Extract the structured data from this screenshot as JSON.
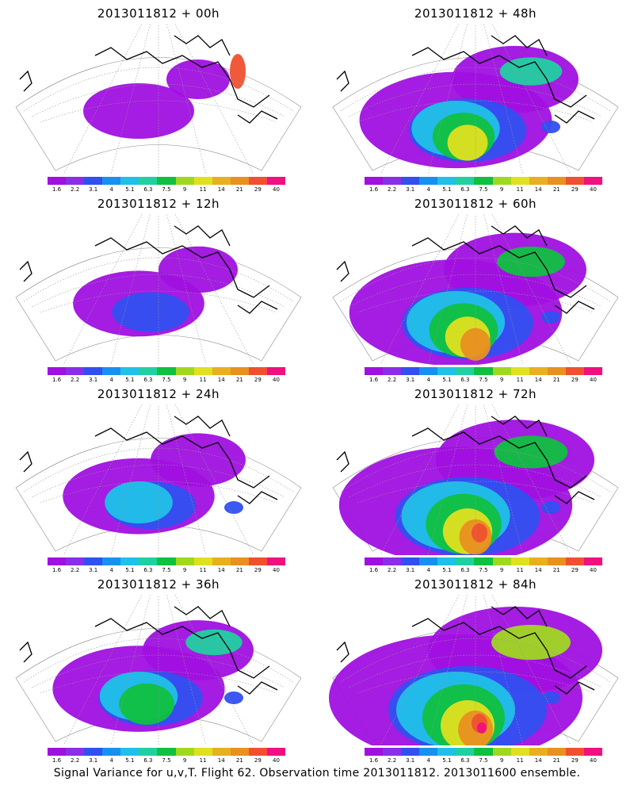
{
  "panels": [
    {
      "title": "2013011812 + 00h",
      "fcst_hour": 0
    },
    {
      "title": "2013011812 + 48h",
      "fcst_hour": 48
    },
    {
      "title": "2013011812 + 12h",
      "fcst_hour": 12
    },
    {
      "title": "2013011812 + 60h",
      "fcst_hour": 60
    },
    {
      "title": "2013011812 + 24h",
      "fcst_hour": 24
    },
    {
      "title": "2013011812 + 72h",
      "fcst_hour": 72
    },
    {
      "title": "2013011812 + 36h",
      "fcst_hour": 36
    },
    {
      "title": "2013011812 + 84h",
      "fcst_hour": 84
    }
  ],
  "colorbar": {
    "labels": [
      "1.6",
      "2.2",
      "3.1",
      "4",
      "5.1",
      "6.3",
      "7.5",
      "9",
      "11",
      "14",
      "21",
      "29",
      "40"
    ],
    "colors": [
      "#a010e0",
      "#8a2ee8",
      "#3050f0",
      "#1890f0",
      "#20c0e8",
      "#20d0a0",
      "#10c040",
      "#a0d820",
      "#e0e020",
      "#e8b020",
      "#e89020",
      "#f05030",
      "#f01080"
    ]
  },
  "caption": "Signal Variance for u,v,T. Flight 62. Observation time 2013011812. 2013011600 ensemble."
}
